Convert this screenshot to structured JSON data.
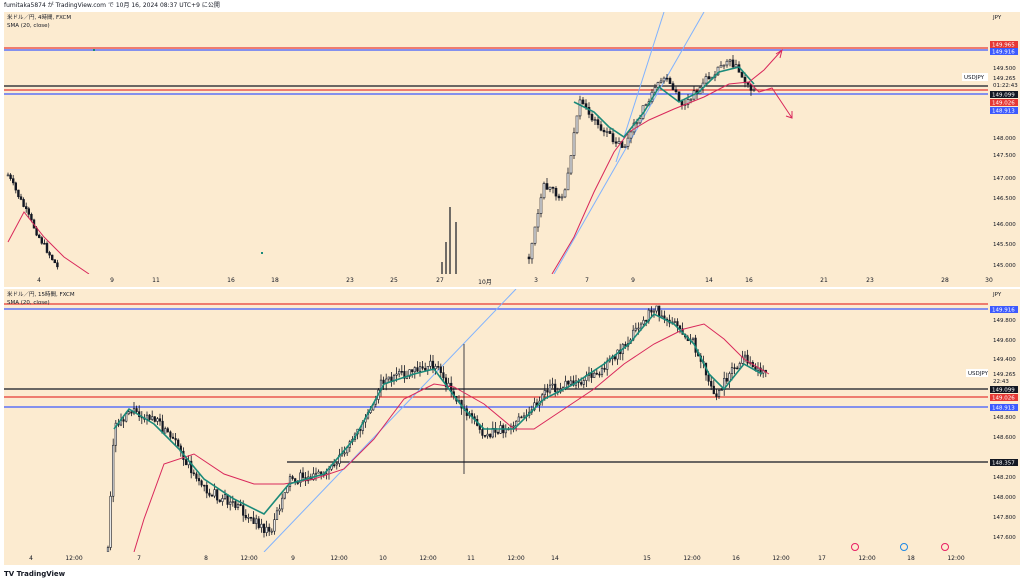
{
  "header": {
    "publish_line": "fumitaka5874 が TradingView.com で 10月 16, 2024 08:37 UTC+9 に公開"
  },
  "pane_top": {
    "legend_title": "米ドル／円, 4時間, FXCM",
    "legend_indicator": "SMA (20, close)",
    "currency": "JPY",
    "symbol_tag": "USDJPY",
    "symbol_price": "149.265",
    "countdown": "01:22:43",
    "price_ticks": [
      "149.500",
      "148.500",
      "148.000",
      "147.500",
      "147.000",
      "146.500",
      "146.000",
      "145.500",
      "145.000"
    ],
    "level_labels": {
      "red_top": "149.965",
      "blue_top": "149.916",
      "black": "149.099",
      "red_mid": "149.026",
      "blue_mid": "148.913"
    },
    "date_ticks": [
      "4",
      "9",
      "11",
      "16",
      "18",
      "23",
      "25",
      "27",
      "10月",
      "3",
      "7",
      "9",
      "14",
      "16",
      "21",
      "23",
      "28",
      "30"
    ]
  },
  "pane_bottom": {
    "legend_title": "米ドル／円, 15時間, FXCM",
    "legend_indicator": "SMA (20, close)",
    "currency": "JPY",
    "symbol_tag": "USDJPY",
    "symbol_price": "149.265",
    "countdown": "22:43",
    "price_ticks": [
      "149.800",
      "149.600",
      "149.400",
      "148.800",
      "148.600",
      "148.200",
      "148.000",
      "147.800",
      "147.600"
    ],
    "level_labels": {
      "blue_top": "149.916",
      "black": "149.099",
      "red_mid": "149.026",
      "blue_mid": "148.913",
      "black_low": "148.357"
    },
    "date_ticks": [
      "4",
      "12:00",
      "7",
      "8",
      "12:00",
      "9",
      "12:00",
      "10",
      "12:00",
      "11",
      "12:00",
      "14",
      "15",
      "12:00",
      "16",
      "12:00",
      "17",
      "12:00",
      "18",
      "12:00"
    ]
  },
  "footer": {
    "brand": "TradingView"
  },
  "colors": {
    "background": "#fcebd0",
    "candle_up": "#ffffff",
    "candle_down": "#131722",
    "sma_fast": "#1b8a7a",
    "sma_slow": "#d9285b",
    "level_red": "#e53935",
    "level_blue": "#3d5afe",
    "level_black": "#131722",
    "trendline": "#7fb2ff"
  }
}
